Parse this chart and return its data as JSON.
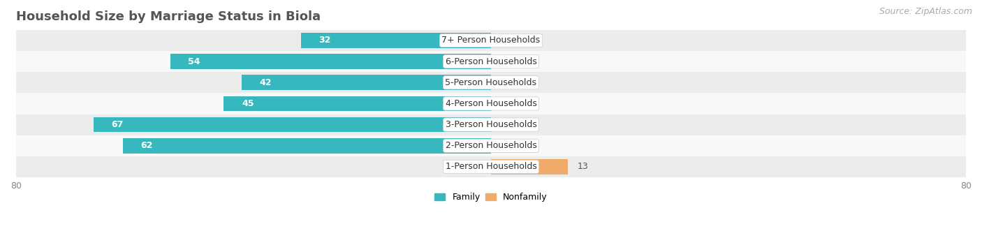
{
  "title": "Household Size by Marriage Status in Biola",
  "source": "Source: ZipAtlas.com",
  "categories": [
    "7+ Person Households",
    "6-Person Households",
    "5-Person Households",
    "4-Person Households",
    "3-Person Households",
    "2-Person Households",
    "1-Person Households"
  ],
  "family_values": [
    32,
    54,
    42,
    45,
    67,
    62,
    0
  ],
  "nonfamily_values": [
    0,
    0,
    0,
    0,
    0,
    0,
    13
  ],
  "family_color": "#36B8BE",
  "nonfamily_color": "#F0AA6A",
  "xlim": [
    -80,
    80
  ],
  "bar_height": 0.72,
  "row_bg_even": "#ececec",
  "row_bg_odd": "#f8f8f8",
  "label_fontsize": 9,
  "category_fontsize": 9,
  "title_fontsize": 13,
  "source_fontsize": 9,
  "tick_fontsize": 9,
  "legend_fontsize": 9
}
